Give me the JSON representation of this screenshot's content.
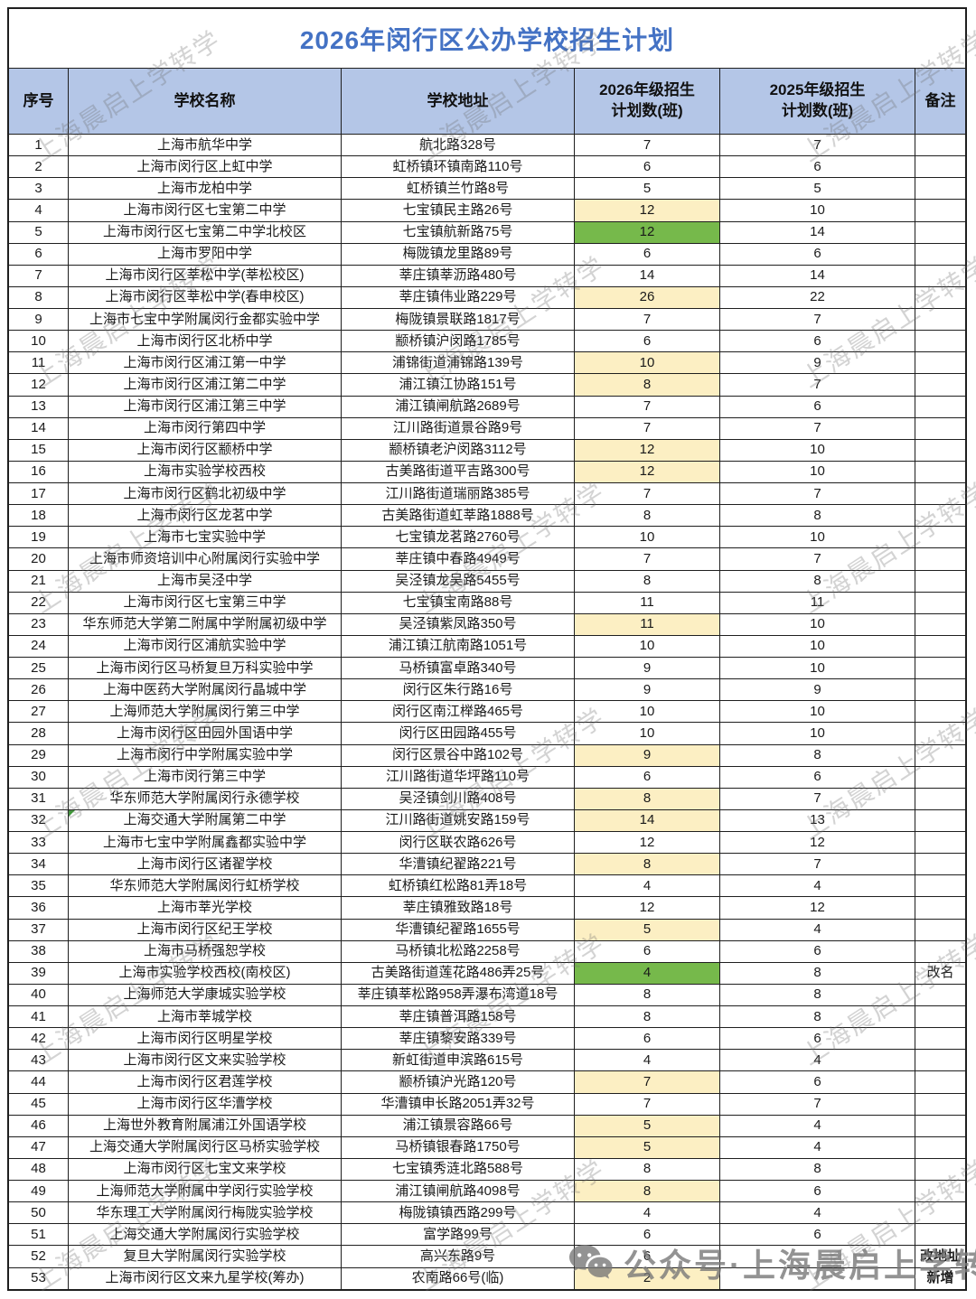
{
  "title": "2026年闵行区公办学校招生计划",
  "watermark": {
    "diagonal_text": "上海晨启上学转学",
    "footer_text": "公众号·上海晨启上学转学"
  },
  "colors": {
    "title_color": "#4472c4",
    "header_bg": "#b4c6e7",
    "highlight_yellow": "#fcefc3",
    "highlight_green": "#76b94b"
  },
  "table": {
    "headers": {
      "index": "序号",
      "name": "学校名称",
      "address": "学校地址",
      "plan2026": "2026年级招生\n计划数(班)",
      "plan2025": "2025年级招生\n计划数(班)",
      "remark": "备注"
    },
    "rows": [
      {
        "index": "1",
        "name": "上海市航华中学",
        "address": "航北路328号",
        "plan2026": "7",
        "plan2025": "7",
        "remark": "",
        "hl": ""
      },
      {
        "index": "2",
        "name": "上海市闵行区上虹中学",
        "address": "虹桥镇环镇南路110号",
        "plan2026": "6",
        "plan2025": "6",
        "remark": "",
        "hl": ""
      },
      {
        "index": "3",
        "name": "上海市龙柏中学",
        "address": "虹桥镇兰竹路8号",
        "plan2026": "5",
        "plan2025": "5",
        "remark": "",
        "hl": ""
      },
      {
        "index": "4",
        "name": "上海市闵行区七宝第二中学",
        "address": "七宝镇民主路26号",
        "plan2026": "12",
        "plan2025": "10",
        "remark": "",
        "hl": "y"
      },
      {
        "index": "5",
        "name": "上海市闵行区七宝第二中学北校区",
        "address": "七宝镇航新路75号",
        "plan2026": "12",
        "plan2025": "14",
        "remark": "",
        "hl": "g"
      },
      {
        "index": "6",
        "name": "上海市罗阳中学",
        "address": "梅陇镇龙里路89号",
        "plan2026": "6",
        "plan2025": "6",
        "remark": "",
        "hl": ""
      },
      {
        "index": "7",
        "name": "上海市闵行区莘松中学(莘松校区)",
        "address": "莘庄镇莘沥路480号",
        "plan2026": "14",
        "plan2025": "14",
        "remark": "",
        "hl": ""
      },
      {
        "index": "8",
        "name": "上海市闵行区莘松中学(春申校区)",
        "address": "莘庄镇伟业路229号",
        "plan2026": "26",
        "plan2025": "22",
        "remark": "",
        "hl": "y"
      },
      {
        "index": "9",
        "name": "上海市七宝中学附属闵行金都实验中学",
        "address": "梅陇镇景联路1817号",
        "plan2026": "7",
        "plan2025": "7",
        "remark": "",
        "hl": ""
      },
      {
        "index": "10",
        "name": "上海市闵行区北桥中学",
        "address": "颛桥镇沪闵路1785号",
        "plan2026": "6",
        "plan2025": "6",
        "remark": "",
        "hl": ""
      },
      {
        "index": "11",
        "name": "上海市闵行区浦江第一中学",
        "address": "浦锦街道浦锦路139号",
        "plan2026": "10",
        "plan2025": "9",
        "remark": "",
        "hl": "y"
      },
      {
        "index": "12",
        "name": "上海市闵行区浦江第二中学",
        "address": "浦江镇江协路151号",
        "plan2026": "8",
        "plan2025": "7",
        "remark": "",
        "hl": "y"
      },
      {
        "index": "13",
        "name": "上海市闵行区浦江第三中学",
        "address": "浦江镇闸航路2689号",
        "plan2026": "7",
        "plan2025": "6",
        "remark": "",
        "hl": ""
      },
      {
        "index": "14",
        "name": "上海市闵行第四中学",
        "address": "江川路街道景谷路9号",
        "plan2026": "7",
        "plan2025": "7",
        "remark": "",
        "hl": ""
      },
      {
        "index": "15",
        "name": "上海市闵行区颛桥中学",
        "address": "颛桥镇老沪闵路3112号",
        "plan2026": "12",
        "plan2025": "10",
        "remark": "",
        "hl": "y"
      },
      {
        "index": "16",
        "name": "上海市实验学校西校",
        "address": "古美路街道平吉路300号",
        "plan2026": "12",
        "plan2025": "10",
        "remark": "",
        "hl": "y"
      },
      {
        "index": "17",
        "name": "上海市闵行区鹤北初级中学",
        "address": "江川路街道瑞丽路385号",
        "plan2026": "7",
        "plan2025": "7",
        "remark": "",
        "hl": ""
      },
      {
        "index": "18",
        "name": "上海市闵行区龙茗中学",
        "address": "古美路街道虹莘路1888号",
        "plan2026": "8",
        "plan2025": "8",
        "remark": "",
        "hl": ""
      },
      {
        "index": "19",
        "name": "上海市七宝实验中学",
        "address": "七宝镇龙茗路2760号",
        "plan2026": "10",
        "plan2025": "10",
        "remark": "",
        "hl": ""
      },
      {
        "index": "20",
        "name": "上海市师资培训中心附属闵行实验中学",
        "address": "莘庄镇中春路4949号",
        "plan2026": "7",
        "plan2025": "7",
        "remark": "",
        "hl": ""
      },
      {
        "index": "21",
        "name": "上海市吴泾中学",
        "address": "吴泾镇龙吴路5455号",
        "plan2026": "8",
        "plan2025": "8",
        "remark": "",
        "hl": ""
      },
      {
        "index": "22",
        "name": "上海市闵行区七宝第三中学",
        "address": "七宝镇宝南路88号",
        "plan2026": "11",
        "plan2025": "11",
        "remark": "",
        "hl": ""
      },
      {
        "index": "23",
        "name": "华东师范大学第二附属中学附属初级中学",
        "address": "吴泾镇紫凤路350号",
        "plan2026": "11",
        "plan2025": "10",
        "remark": "",
        "hl": "y"
      },
      {
        "index": "24",
        "name": "上海市闵行区浦航实验中学",
        "address": "浦江镇江航南路1051号",
        "plan2026": "10",
        "plan2025": "10",
        "remark": "",
        "hl": ""
      },
      {
        "index": "25",
        "name": "上海市闵行区马桥复旦万科实验中学",
        "address": "马桥镇富卓路340号",
        "plan2026": "9",
        "plan2025": "10",
        "remark": "",
        "hl": ""
      },
      {
        "index": "26",
        "name": "上海中医药大学附属闵行晶城中学",
        "address": "闵行区朱行路16号",
        "plan2026": "9",
        "plan2025": "9",
        "remark": "",
        "hl": ""
      },
      {
        "index": "27",
        "name": "上海师范大学附属闵行第三中学",
        "address": "闵行区南江榉路465号",
        "plan2026": "10",
        "plan2025": "10",
        "remark": "",
        "hl": ""
      },
      {
        "index": "28",
        "name": "上海市闵行区田园外国语中学",
        "address": "闵行区田园路455号",
        "plan2026": "10",
        "plan2025": "10",
        "remark": "",
        "hl": ""
      },
      {
        "index": "29",
        "name": "上海市闵行中学附属实验中学",
        "address": "闵行区景谷中路102号",
        "plan2026": "9",
        "plan2025": "8",
        "remark": "",
        "hl": "y"
      },
      {
        "index": "30",
        "name": "上海市闵行第三中学",
        "address": "江川路街道华坪路110号",
        "plan2026": "6",
        "plan2025": "6",
        "remark": "",
        "hl": ""
      },
      {
        "index": "31",
        "name": "华东师范大学附属闵行永德学校",
        "address": "吴泾镇剑川路408号",
        "plan2026": "8",
        "plan2025": "7",
        "remark": "",
        "hl": "y"
      },
      {
        "index": "32",
        "name": "上海交通大学附属第二中学",
        "address": "江川路街道姚安路159号",
        "plan2026": "14",
        "plan2025": "13",
        "remark": "",
        "hl": "y",
        "comment": true
      },
      {
        "index": "33",
        "name": "上海市七宝中学附属鑫都实验中学",
        "address": "闵行区联农路626号",
        "plan2026": "12",
        "plan2025": "12",
        "remark": "",
        "hl": ""
      },
      {
        "index": "34",
        "name": "上海市闵行区诸翟学校",
        "address": "华漕镇纪翟路221号",
        "plan2026": "8",
        "plan2025": "7",
        "remark": "",
        "hl": "y"
      },
      {
        "index": "35",
        "name": "华东师范大学附属闵行虹桥学校",
        "address": "虹桥镇红松路81弄18号",
        "plan2026": "4",
        "plan2025": "4",
        "remark": "",
        "hl": ""
      },
      {
        "index": "36",
        "name": "上海市莘光学校",
        "address": "莘庄镇雅致路18号",
        "plan2026": "12",
        "plan2025": "12",
        "remark": "",
        "hl": ""
      },
      {
        "index": "37",
        "name": "上海市闵行区纪王学校",
        "address": "华漕镇纪翟路1655号",
        "plan2026": "5",
        "plan2025": "4",
        "remark": "",
        "hl": "y"
      },
      {
        "index": "38",
        "name": "上海市马桥强恕学校",
        "address": "马桥镇北松路2258号",
        "plan2026": "6",
        "plan2025": "6",
        "remark": "",
        "hl": ""
      },
      {
        "index": "39",
        "name": "上海市实验学校西校(南校区)",
        "address": "古美路街道莲花路486弄25号",
        "plan2026": "4",
        "plan2025": "8",
        "remark": "改名",
        "hl": "g"
      },
      {
        "index": "40",
        "name": "上海师范大学康城实验学校",
        "address": "莘庄镇莘松路958弄瀑布湾道18号",
        "plan2026": "8",
        "plan2025": "8",
        "remark": "",
        "hl": ""
      },
      {
        "index": "41",
        "name": "上海市莘城学校",
        "address": "莘庄镇普洱路158号",
        "plan2026": "8",
        "plan2025": "8",
        "remark": "",
        "hl": ""
      },
      {
        "index": "42",
        "name": "上海市闵行区明星学校",
        "address": "莘庄镇黎安路339号",
        "plan2026": "6",
        "plan2025": "6",
        "remark": "",
        "hl": ""
      },
      {
        "index": "43",
        "name": "上海市闵行区文来实验学校",
        "address": "新虹街道申滨路615号",
        "plan2026": "4",
        "plan2025": "4",
        "remark": "",
        "hl": ""
      },
      {
        "index": "44",
        "name": "上海市闵行区君莲学校",
        "address": "颛桥镇沪光路120号",
        "plan2026": "7",
        "plan2025": "6",
        "remark": "",
        "hl": "y"
      },
      {
        "index": "45",
        "name": "上海市闵行区华漕学校",
        "address": "华漕镇申长路2051弄32号",
        "plan2026": "7",
        "plan2025": "7",
        "remark": "",
        "hl": ""
      },
      {
        "index": "46",
        "name": "上海世外教育附属浦江外国语学校",
        "address": "浦江镇景容路66号",
        "plan2026": "5",
        "plan2025": "4",
        "remark": "",
        "hl": "y"
      },
      {
        "index": "47",
        "name": "上海交通大学附属闵行区马桥实验学校",
        "address": "马桥镇银春路1750号",
        "plan2026": "5",
        "plan2025": "4",
        "remark": "",
        "hl": "y"
      },
      {
        "index": "48",
        "name": "上海市闵行区七宝文来学校",
        "address": "七宝镇秀涟北路588号",
        "plan2026": "8",
        "plan2025": "8",
        "remark": "",
        "hl": ""
      },
      {
        "index": "49",
        "name": "上海师范大学附属中学闵行实验学校",
        "address": "浦江镇闸航路4098号",
        "plan2026": "8",
        "plan2025": "6",
        "remark": "",
        "hl": "y"
      },
      {
        "index": "50",
        "name": "华东理工大学附属闵行梅陇实验学校",
        "address": "梅陇镇镇西路299号",
        "plan2026": "4",
        "plan2025": "4",
        "remark": "",
        "hl": ""
      },
      {
        "index": "51",
        "name": "上海交通大学附属闵行实验学校",
        "address": "富学路99号",
        "plan2026": "6",
        "plan2025": "6",
        "remark": "",
        "hl": ""
      },
      {
        "index": "52",
        "name": "复旦大学附属闵行实验学校",
        "address": "高兴东路9号",
        "plan2026": "6",
        "plan2025": "",
        "remark": "改地址",
        "hl": "",
        "remark_bold": true
      },
      {
        "index": "53",
        "name": "上海市闵行区文来九星学校(筹办)",
        "address": "农南路66号(临)",
        "plan2026": "2",
        "plan2025": "",
        "remark": "新增",
        "hl": "y",
        "remark_bold": true
      }
    ]
  }
}
